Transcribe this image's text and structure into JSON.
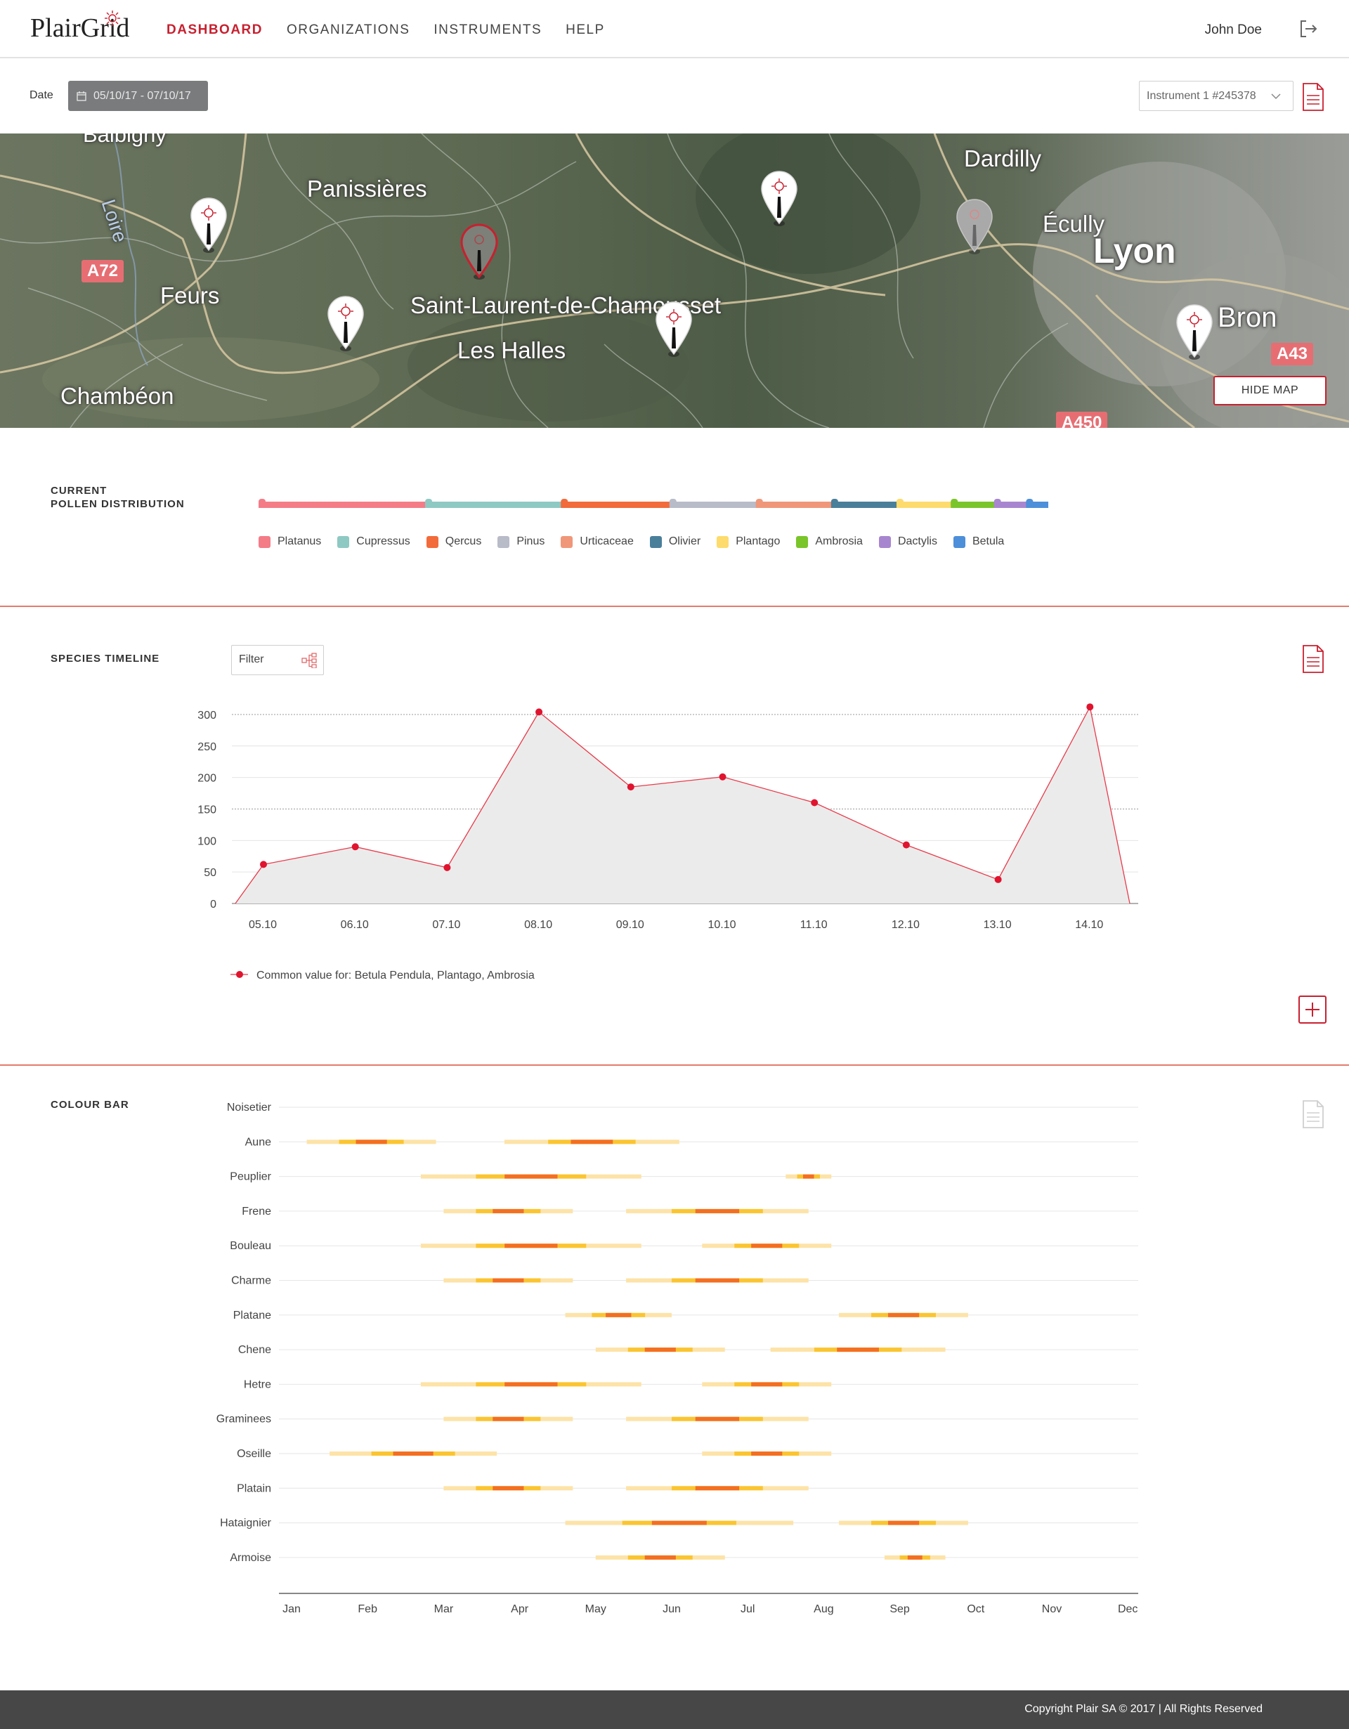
{
  "header": {
    "logo": "PlairGrid",
    "nav": [
      {
        "label": "DASHBOARD",
        "active": true
      },
      {
        "label": "ORGANIZATIONS",
        "active": false
      },
      {
        "label": "INSTRUMENTS",
        "active": false
      },
      {
        "label": "HELP",
        "active": false
      }
    ],
    "user_name": "John Doe"
  },
  "toolbar": {
    "date_label": "Date",
    "date_range": "05/10/17 - 07/10/17",
    "instrument": "Instrument 1 #245378"
  },
  "map": {
    "places": [
      "Balbigny",
      "Panissières",
      "Dardilly",
      "Écully",
      "Lyon",
      "Loire",
      "Feurs",
      "Saint-Laurent-de-Chamousset",
      "Les Halles",
      "Bron",
      "Chambéon"
    ],
    "roads": [
      "A72",
      "A43",
      "A450"
    ],
    "hide_map_label": "HIDE MAP"
  },
  "pollen_distribution": {
    "title_line1": "CURRENT",
    "title_line2": "POLLEN DISTRIBUTION",
    "species": [
      {
        "name": "Platanus",
        "color": "#f47c87",
        "share": 13.5
      },
      {
        "name": "Cupressus",
        "color": "#8fc9c3",
        "share": 11.0
      },
      {
        "name": "Qercus",
        "color": "#f26b3a",
        "share": 8.8
      },
      {
        "name": "Pinus",
        "color": "#b8bbc8",
        "share": 7.0
      },
      {
        "name": "Urticaceae",
        "color": "#f0977a",
        "share": 6.1
      },
      {
        "name": "Olivier",
        "color": "#4a7f9a",
        "share": 5.3
      },
      {
        "name": "Plantago",
        "color": "#fddb6d",
        "share": 4.4
      },
      {
        "name": "Ambrosia",
        "color": "#7ac52a",
        "share": 3.5
      },
      {
        "name": "Dactylis",
        "color": "#a886cf",
        "share": 2.6
      },
      {
        "name": "Betula",
        "color": "#4d8fd9",
        "share": 1.8
      }
    ]
  },
  "species_timeline": {
    "title": "SPECIES TIMELINE",
    "filter_placeholder": "Filter",
    "chart_data": {
      "type": "area",
      "categories": [
        "05.10",
        "06.10",
        "07.10",
        "08.10",
        "09.10",
        "10.10",
        "11.10",
        "12.10",
        "13.10",
        "14.10"
      ],
      "series": [
        {
          "name": "Common value for: Betula Pendula, Plantago, Ambrosia",
          "values": [
            62,
            90,
            57,
            304,
            185,
            201,
            160,
            93,
            38,
            312
          ]
        }
      ],
      "yticks": [
        0,
        50,
        100,
        150,
        200,
        250,
        300
      ],
      "ylim": [
        0,
        310
      ],
      "line_color": "#e83a4a",
      "fill_color": "#ebebeb"
    },
    "legend_label": "Common value for: Betula Pendula, Plantago, Ambrosia"
  },
  "colour_bar": {
    "title": "COLOUR BAR",
    "months": [
      "Jan",
      "Feb",
      "Mar",
      "Apr",
      "May",
      "Jun",
      "Jul",
      "Aug",
      "Sep",
      "Oct",
      "Nov",
      "Dec"
    ],
    "colors": {
      "low": "#fde3a8",
      "mid": "#fbc531",
      "high": "#f36f21"
    },
    "rows": [
      {
        "name": "Noisetier",
        "seasons": []
      },
      {
        "name": "Aune",
        "seasons": [
          [
            0.2,
            1.9
          ],
          [
            2.8,
            5.1
          ]
        ]
      },
      {
        "name": "Peuplier",
        "seasons": [
          [
            1.7,
            4.6
          ],
          [
            6.5,
            7.1
          ]
        ]
      },
      {
        "name": "Frene",
        "seasons": [
          [
            2.0,
            3.7
          ],
          [
            4.4,
            6.8
          ]
        ]
      },
      {
        "name": "Bouleau",
        "seasons": [
          [
            1.7,
            4.6
          ],
          [
            5.4,
            7.1
          ]
        ]
      },
      {
        "name": "Charme",
        "seasons": [
          [
            2.0,
            3.7
          ],
          [
            4.4,
            6.8
          ]
        ]
      },
      {
        "name": "Platane",
        "seasons": [
          [
            3.6,
            5.0
          ],
          [
            7.2,
            8.9
          ]
        ]
      },
      {
        "name": "Chene",
        "seasons": [
          [
            4.0,
            5.7
          ],
          [
            6.3,
            8.6
          ]
        ]
      },
      {
        "name": "Hetre",
        "seasons": [
          [
            1.7,
            4.6
          ],
          [
            5.4,
            7.1
          ]
        ]
      },
      {
        "name": "Graminees",
        "seasons": [
          [
            2.0,
            3.7
          ],
          [
            4.4,
            6.8
          ]
        ]
      },
      {
        "name": "Oseille",
        "seasons": [
          [
            0.5,
            2.7
          ],
          [
            5.4,
            7.1
          ]
        ]
      },
      {
        "name": "Platain",
        "seasons": [
          [
            2.0,
            3.7
          ],
          [
            4.4,
            6.8
          ]
        ]
      },
      {
        "name": "Hataignier",
        "seasons": [
          [
            3.6,
            6.6
          ],
          [
            7.2,
            8.9
          ]
        ]
      },
      {
        "name": "Armoise",
        "seasons": [
          [
            4.0,
            5.7
          ],
          [
            7.8,
            8.6
          ]
        ]
      }
    ]
  },
  "footer": {
    "copyright": "Copyright Plair SA © 2017 | All Rights Reserved"
  }
}
